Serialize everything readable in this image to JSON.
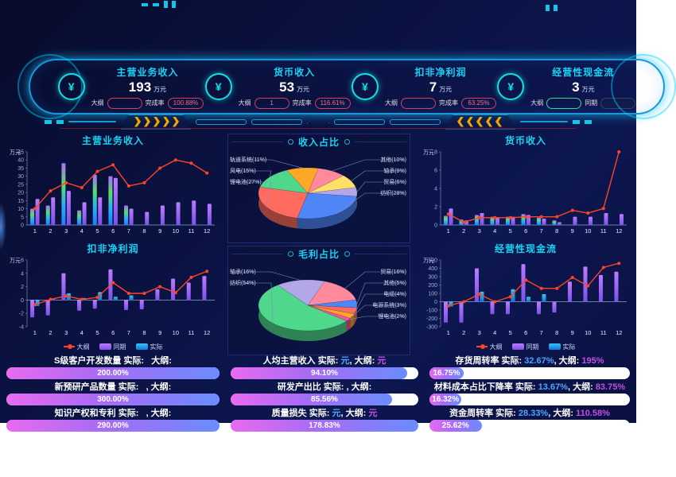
{
  "header": {
    "kpis": [
      {
        "title": "主营业务收入",
        "value": "193",
        "unit": "万元",
        "pills": [
          {
            "label": "大纲",
            "value": ""
          },
          {
            "label": "完成率",
            "value": "100.88%"
          }
        ]
      },
      {
        "title": "货币收入",
        "value": "53",
        "unit": "万元",
        "pills": [
          {
            "label": "大纲",
            "value": "1"
          },
          {
            "label": "完成率",
            "value": "116.61%"
          }
        ]
      },
      {
        "title": "扣非净利润",
        "value": "7",
        "unit": "万元",
        "pills": [
          {
            "label": "大纲",
            "value": ""
          },
          {
            "label": "完成率",
            "value": "63.25%"
          }
        ]
      },
      {
        "title": "经营性现金流",
        "value": "3",
        "unit": "万元",
        "pills": [
          {
            "label": "大纲",
            "value": ""
          },
          {
            "label": "同期",
            "value": ""
          }
        ]
      }
    ],
    "yuan_icon": "¥"
  },
  "colors": {
    "accent": "#19d3f5",
    "line": "#ff4326",
    "bar_tongqi_top": "#bb7bff",
    "bar_tongqi_bottom": "#7b52e8",
    "bar_shiji_cyan_top": "#35c3f0",
    "bar_shiji_cyan_bottom": "#1477d8",
    "bar_multi": [
      "#b06aff",
      "#55e06a",
      "#2aa8ff",
      "#1e7dff"
    ],
    "progress_gradient": [
      "#e86bf0",
      "#6b8cff"
    ],
    "completion_pill": "#ff6b81"
  },
  "chart_data": [
    {
      "type": "bar",
      "title": "主营业务收入",
      "ylabel": "万元",
      "ylim": [
        0,
        45
      ],
      "yticks": [
        0,
        5,
        10,
        15,
        20,
        25,
        30,
        35,
        40,
        45
      ],
      "categories": [
        "1",
        "2",
        "3",
        "4",
        "5",
        "6",
        "7",
        "8",
        "9",
        "10",
        "11",
        "12"
      ],
      "series": [
        {
          "name": "实际",
          "kind": "bar",
          "palette": "multi",
          "values": [
            10,
            12,
            38,
            9,
            31,
            30,
            12,
            0,
            0,
            0,
            0,
            0
          ]
        },
        {
          "name": "同期",
          "kind": "bar",
          "palette": "purple",
          "values": [
            16,
            17,
            21,
            14,
            17,
            29,
            10,
            8,
            12,
            14,
            15,
            13
          ]
        },
        {
          "name": "大纲",
          "kind": "line",
          "palette": "red",
          "values": [
            10,
            21,
            26,
            23,
            33,
            37,
            24,
            26,
            35,
            40,
            38,
            32
          ]
        }
      ],
      "legend": false
    },
    {
      "type": "pie",
      "title": "收入占比",
      "start": -115,
      "slices": [
        {
          "label": "轨道系统",
          "pct": 11,
          "color": "#ffa726"
        },
        {
          "label": "其他",
          "pct": 10,
          "color": "#ff8a9b"
        },
        {
          "label": "轴承",
          "pct": 9,
          "color": "#ffe066"
        },
        {
          "label": "贸易",
          "pct": 6,
          "color": "#b3a7e8"
        },
        {
          "label": "纺织",
          "pct": 28,
          "color": "#4f86f7"
        },
        {
          "label": "锂电池",
          "pct": 27,
          "color": "#ff6b5e"
        },
        {
          "label": "风电",
          "pct": 15,
          "color": "#4fd88b"
        }
      ]
    },
    {
      "type": "bar",
      "title": "货币收入",
      "ylabel": "万元",
      "ylim": [
        0,
        8
      ],
      "yticks": [
        0,
        2,
        4,
        6,
        8
      ],
      "categories": [
        "1",
        "2",
        "3",
        "4",
        "5",
        "6",
        "7",
        "8",
        "9",
        "10",
        "11",
        "12"
      ],
      "series": [
        {
          "name": "实际",
          "kind": "bar",
          "palette": "multi",
          "values": [
            1.0,
            0.6,
            1.1,
            0.9,
            0.9,
            1.2,
            0.8,
            0.5,
            0,
            0,
            0,
            0
          ]
        },
        {
          "name": "同期",
          "kind": "bar",
          "palette": "purple",
          "values": [
            1.8,
            0.5,
            1.3,
            0.8,
            0.9,
            1.1,
            0.7,
            0.3,
            0.9,
            0.9,
            1.3,
            1.2
          ]
        },
        {
          "name": "大纲",
          "kind": "line",
          "palette": "red",
          "values": [
            1.2,
            0.3,
            0.8,
            0.8,
            0.8,
            0.9,
            0.9,
            0.9,
            1.6,
            1.3,
            1.8,
            8.0
          ]
        }
      ],
      "legend": false
    },
    {
      "type": "bar",
      "title": "扣非净利润",
      "ylabel": "万元",
      "ylim": [
        -4,
        6
      ],
      "yticks": [
        -4,
        -2,
        0,
        2,
        4,
        6
      ],
      "categories": [
        "1",
        "2",
        "3",
        "4",
        "5",
        "6",
        "7",
        "8",
        "9",
        "10",
        "11",
        "12"
      ],
      "series": [
        {
          "name": "同期",
          "kind": "bar",
          "palette": "purple",
          "values": [
            -2.6,
            -2.3,
            4.0,
            -1.6,
            -1.3,
            4.6,
            -1.5,
            -1.4,
            1.6,
            3.2,
            2.6,
            3.6
          ]
        },
        {
          "name": "实际",
          "kind": "bar",
          "palette": "cyan",
          "values": [
            -0.9,
            0.2,
            1.0,
            0.3,
            1.2,
            0.5,
            0.7,
            0,
            0,
            0,
            0,
            0
          ]
        },
        {
          "name": "大纲",
          "kind": "line",
          "palette": "red",
          "values": [
            -0.7,
            0.1,
            0.6,
            0.1,
            0.4,
            2.6,
            1.0,
            1.0,
            2.0,
            1.1,
            3.4,
            4.3
          ]
        }
      ],
      "legend": true,
      "legend_items": [
        "大纲",
        "同期",
        "实际"
      ]
    },
    {
      "type": "pie",
      "title": "毛利占比",
      "start": -70,
      "slices": [
        {
          "label": "贸易",
          "pct": 16,
          "color": "#ff8a9b"
        },
        {
          "label": "其他",
          "pct": 5,
          "color": "#4f86f7"
        },
        {
          "label": "电缆",
          "pct": 4,
          "color": "#ff6b5e"
        },
        {
          "label": "电源系统",
          "pct": 3,
          "color": "#ffa726"
        },
        {
          "label": "锂电池",
          "pct": 2,
          "color": "#ff4fa0"
        },
        {
          "label": "纺织",
          "pct": 54,
          "color": "#4fd88b"
        },
        {
          "label": "轴承",
          "pct": 16,
          "color": "#b3a7e8"
        }
      ]
    },
    {
      "type": "bar",
      "title": "经营性现金流",
      "ylabel": "万元",
      "ylim": [
        -300,
        500
      ],
      "yticks": [
        -300,
        -200,
        -100,
        0,
        100,
        200,
        300,
        400,
        500
      ],
      "categories": [
        "1",
        "2",
        "3",
        "4",
        "5",
        "6",
        "7",
        "8",
        "9",
        "10",
        "11",
        "12"
      ],
      "series": [
        {
          "name": "同期",
          "kind": "bar",
          "palette": "purple",
          "values": [
            -250,
            -250,
            400,
            -150,
            -150,
            450,
            -150,
            -130,
            240,
            420,
            320,
            360
          ]
        },
        {
          "name": "实际",
          "kind": "bar",
          "palette": "cyan",
          "values": [
            -60,
            0,
            120,
            0,
            150,
            60,
            90,
            0,
            0,
            0,
            0,
            0
          ]
        },
        {
          "name": "大纲",
          "kind": "line",
          "palette": "red",
          "values": [
            -50,
            0,
            90,
            0,
            60,
            260,
            160,
            160,
            290,
            190,
            410,
            460
          ]
        }
      ],
      "legend": true,
      "legend_items": [
        "大纲",
        "同期",
        "实际"
      ]
    }
  ],
  "progress": {
    "cols": [
      {
        "items": [
          {
            "title": "S级客户开发数量",
            "slabel": "实际:",
            "shiji": "",
            "dlabel": "大纲:",
            "daggang": "",
            "percent": "200.00%",
            "fill": 100
          },
          {
            "title": "新预研产品数量",
            "slabel": "实际:",
            "shiji": "",
            "dlabel": ", 大纲:",
            "daggang": "",
            "percent": "300.00%",
            "fill": 100
          },
          {
            "title": "知识产权和专利",
            "slabel": "实际:",
            "shiji": "",
            "dlabel": ", 大纲:",
            "daggang": "",
            "percent": "290.00%",
            "fill": 100
          }
        ]
      },
      {
        "items": [
          {
            "title": "人均主营收入",
            "slabel": "实际:",
            "shiji": "元",
            "dlabel": ", 大纲:",
            "daggang": "元",
            "percent": "94.10%",
            "fill": 94
          },
          {
            "title": "研发产出比",
            "slabel": "实际:",
            "shiji": "",
            "dlabel": ", 大纲:",
            "daggang": "",
            "percent": "85.56%",
            "fill": 86
          },
          {
            "title": "质量损失",
            "slabel": "实际:",
            "shiji": "元",
            "dlabel": ", 大纲:",
            "daggang": "元",
            "percent": "178.83%",
            "fill": 100
          }
        ]
      },
      {
        "items": [
          {
            "title": "存货周转率",
            "slabel": "实际:",
            "shiji": "32.67%",
            "dlabel": ", 大纲:",
            "daggang": "195%",
            "percent": "16.75%",
            "fill": 17
          },
          {
            "title": "材料成本占比下降率",
            "slabel": "实际:",
            "shiji": "13.67%",
            "dlabel": ", 大纲:",
            "daggang": "83.75%",
            "percent": "16.32%",
            "fill": 16
          },
          {
            "title": "资金周转率",
            "slabel": "实际:",
            "shiji": "28.33%",
            "dlabel": ", 大纲:",
            "daggang": "110.58%",
            "percent": "25.62%",
            "fill": 26
          }
        ]
      }
    ]
  }
}
